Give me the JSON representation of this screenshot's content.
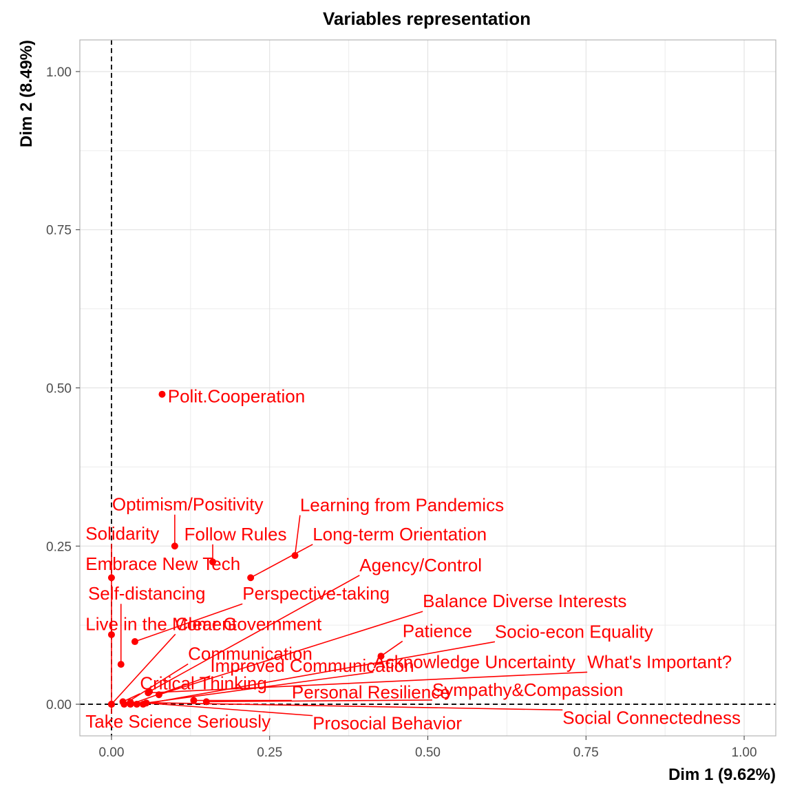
{
  "chart_data": {
    "type": "scatter",
    "title": "Variables representation",
    "xlabel": "Dim 1 (9.62%)",
    "ylabel": "Dim 2 (8.49%)",
    "xlim": [
      -0.05,
      1.05
    ],
    "ylim": [
      -0.05,
      1.05
    ],
    "xticks": [
      0,
      0.25,
      0.5,
      0.75,
      1
    ],
    "yticks": [
      0,
      0.25,
      0.5,
      0.75,
      1
    ],
    "xtick_labels": [
      "0.00",
      "0.25",
      "0.50",
      "0.75",
      "1.00"
    ],
    "ytick_labels": [
      "0.00",
      "0.25",
      "0.50",
      "0.75",
      "1.00"
    ],
    "reference_lines": {
      "x": 0,
      "y": 0
    },
    "color": "#ff0000",
    "points": [
      {
        "name": "Polit.Cooperation",
        "x": 0.08,
        "y": 0.49,
        "lx": 0.089,
        "ly": 0.487
      },
      {
        "name": "Optimism/Positivity",
        "x": 0.1,
        "y": 0.25,
        "lx": 0.001,
        "ly": 0.316
      },
      {
        "name": "Learning from Pandemics",
        "x": 0.29,
        "y": 0.235,
        "lx": 0.298,
        "ly": 0.315
      },
      {
        "name": "Solidarity",
        "x": 0.0,
        "y": 0.2,
        "lx": -0.041,
        "ly": 0.27
      },
      {
        "name": "Follow Rules",
        "x": 0.16,
        "y": 0.225,
        "lx": 0.115,
        "ly": 0.269
      },
      {
        "name": "Long-term Orientation",
        "x": 0.22,
        "y": 0.2,
        "lx": 0.318,
        "ly": 0.269
      },
      {
        "name": "Embrace New Tech",
        "x": 0.0,
        "y": 0.11,
        "lx": -0.041,
        "ly": 0.222
      },
      {
        "name": "Agency/Control",
        "x": 0.06,
        "y": 0.02,
        "lx": 0.392,
        "ly": 0.22
      },
      {
        "name": "Self-distancing",
        "x": 0.015,
        "y": 0.063,
        "lx": -0.037,
        "ly": 0.175
      },
      {
        "name": "Perspective-taking",
        "x": 0.037,
        "y": 0.099,
        "lx": 0.207,
        "ly": 0.175
      },
      {
        "name": "Balance Diverse Interests",
        "x": 0.075,
        "y": 0.015,
        "lx": 0.492,
        "ly": 0.163
      },
      {
        "name": "Live in the Moment",
        "x": 0.0,
        "y": 0.0,
        "lx": -0.041,
        "ly": 0.127
      },
      {
        "name": "Clear Government",
        "x": 0.0,
        "y": 0.0,
        "lx": 0.101,
        "ly": 0.127
      },
      {
        "name": "Patience",
        "x": 0.426,
        "y": 0.076,
        "lx": 0.46,
        "ly": 0.116
      },
      {
        "name": "Socio-econ Equality",
        "x": 0.05,
        "y": 0.0,
        "lx": 0.606,
        "ly": 0.115
      },
      {
        "name": "Communication",
        "x": 0.02,
        "y": 0.0,
        "lx": 0.121,
        "ly": 0.08
      },
      {
        "name": "Improved Communication",
        "x": 0.03,
        "y": 0.0,
        "lx": 0.156,
        "ly": 0.061
      },
      {
        "name": "Acknowledge Uncertainty",
        "x": 0.04,
        "y": 0.0,
        "lx": 0.414,
        "ly": 0.067
      },
      {
        "name": "What's Important?",
        "x": 0.058,
        "y": 0.018,
        "lx": 0.752,
        "ly": 0.067
      },
      {
        "name": "Critical Thinking",
        "x": 0.018,
        "y": 0.004,
        "lx": 0.045,
        "ly": 0.033
      },
      {
        "name": "Personal Resilience",
        "x": 0.13,
        "y": 0.006,
        "lx": 0.285,
        "ly": 0.019
      },
      {
        "name": "Sympathy&Compassion",
        "x": 0.15,
        "y": 0.004,
        "lx": 0.507,
        "ly": 0.023
      },
      {
        "name": "Take Science Seriously",
        "x": 0.0,
        "y": 0.0,
        "lx": -0.041,
        "ly": -0.027
      },
      {
        "name": "Prosocial Behavior",
        "x": 0.055,
        "y": 0.002,
        "lx": 0.318,
        "ly": -0.03
      },
      {
        "name": "Social Connectedness",
        "x": 0.03,
        "y": 0.003,
        "lx": 0.713,
        "ly": -0.021
      }
    ]
  }
}
